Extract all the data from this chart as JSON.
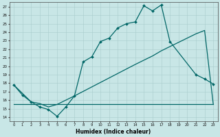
{
  "xlabel": "Humidex (Indice chaleur)",
  "xlim": [
    -0.5,
    23.5
  ],
  "ylim": [
    13.5,
    27.5
  ],
  "xticks": [
    0,
    1,
    2,
    3,
    4,
    5,
    6,
    7,
    8,
    9,
    10,
    11,
    12,
    13,
    14,
    15,
    16,
    17,
    18,
    19,
    20,
    21,
    22,
    23
  ],
  "yticks": [
    14,
    15,
    16,
    17,
    18,
    19,
    20,
    21,
    22,
    23,
    24,
    25,
    26,
    27
  ],
  "background_color": "#c8e6e6",
  "grid_color": "#a8cccc",
  "line_color": "#006666",
  "marker_size": 2.0,
  "line_width": 0.9,
  "line1_x": [
    0,
    1,
    2,
    3,
    4,
    5,
    6,
    7,
    8,
    9,
    10,
    11,
    12,
    13,
    14,
    15,
    16,
    17,
    18,
    21,
    22,
    23
  ],
  "line1_y": [
    17.8,
    16.6,
    15.8,
    15.2,
    14.9,
    14.1,
    15.2,
    16.5,
    20.5,
    21.1,
    22.9,
    23.3,
    24.5,
    25.0,
    25.2,
    27.1,
    26.5,
    27.2,
    22.9,
    19.0,
    18.5,
    17.9
  ],
  "line2_x": [
    0,
    2,
    3,
    4,
    5,
    6,
    7,
    14,
    15,
    16,
    17,
    18,
    19,
    20,
    21,
    22,
    23
  ],
  "line2_y": [
    17.8,
    15.8,
    15.6,
    15.2,
    15.5,
    16.0,
    16.5,
    20.2,
    20.7,
    21.2,
    21.8,
    22.3,
    22.8,
    23.3,
    23.8,
    24.2,
    15.5
  ],
  "line3_x": [
    0,
    1,
    2,
    3,
    4,
    5,
    6,
    7,
    8,
    9,
    10,
    11,
    12,
    13,
    14,
    15,
    16,
    17,
    18,
    19,
    20,
    21,
    22,
    23
  ],
  "line3_y": [
    15.5,
    15.5,
    15.5,
    15.5,
    15.5,
    15.5,
    15.5,
    15.5,
    15.5,
    15.5,
    15.5,
    15.5,
    15.5,
    15.5,
    15.5,
    15.5,
    15.5,
    15.5,
    15.5,
    15.5,
    15.5,
    15.5,
    15.5,
    15.5
  ]
}
